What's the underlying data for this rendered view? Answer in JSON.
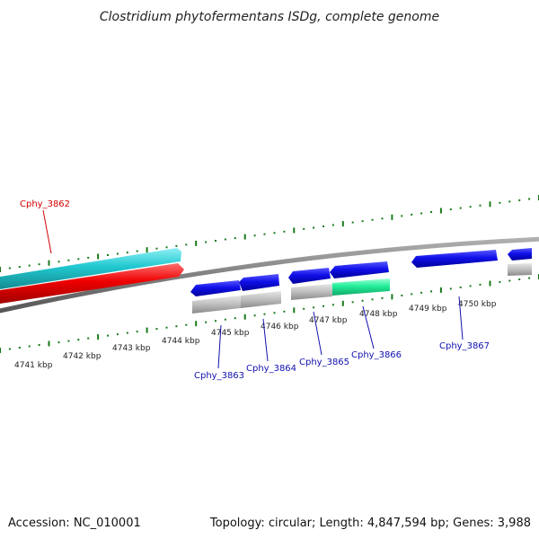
{
  "title": "Clostridium phytofermentans ISDg, complete genome",
  "footer": {
    "accession": "Accession: NC_010001",
    "topology": "Topology: circular; Length: 4,847,594 bp; Genes: 3,988"
  },
  "colors": {
    "tick": "#1a7a1a",
    "backbone": "#808080",
    "gene_blue": "#0a0ad8",
    "gene_cyan": "#22c8d0",
    "gene_red": "#ee0000",
    "gene_green": "#22ee99",
    "gene_gray": "#bdbdbd",
    "label_red": "#d00000",
    "label_blue": "#1010b0"
  },
  "scale_labels": [
    "4741 kbp",
    "4742 kbp",
    "4743 kbp",
    "4744 kbp",
    "4745 kbp",
    "4746 kbp",
    "4747 kbp",
    "4748 kbp",
    "4749 kbp",
    "4750 kbp"
  ],
  "gene_labels": [
    {
      "name": "Cphy_3862",
      "color": "red"
    },
    {
      "name": "Cphy_3863",
      "color": "blue"
    },
    {
      "name": "Cphy_3864",
      "color": "blue"
    },
    {
      "name": "Cphy_3865",
      "color": "blue"
    },
    {
      "name": "Cphy_3866",
      "color": "blue"
    },
    {
      "name": "Cphy_3867",
      "color": "blue"
    }
  ]
}
